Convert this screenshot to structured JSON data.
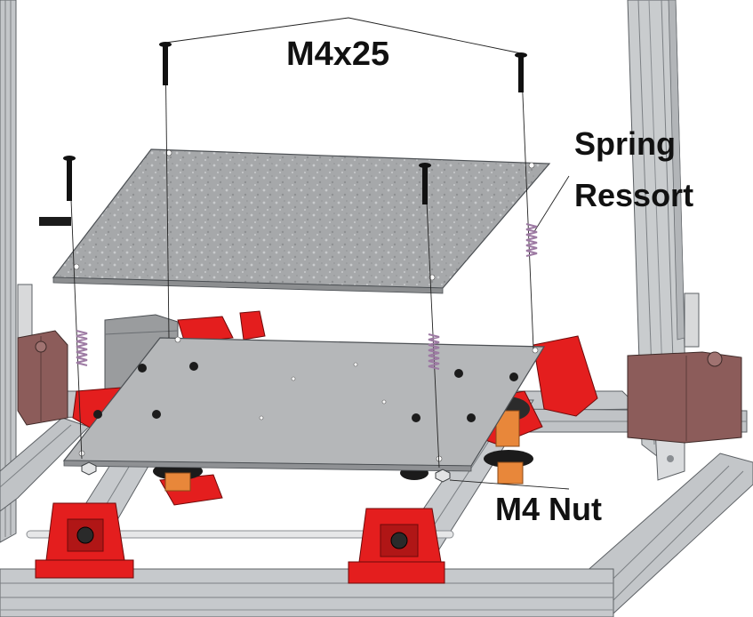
{
  "labels": {
    "screw": "M4x25",
    "spring_en": "Spring",
    "spring_fr": "Ressort",
    "nut": "M4 Nut"
  },
  "colors": {
    "frame": "#b8bcc0",
    "frame_dark": "#6f7377",
    "top_plate": "#a9abad",
    "carriage_plate": "#b5b7b9",
    "red_parts": "#e41e1e",
    "spring": "#b08ab4",
    "screw": "#111111",
    "motor_brown": "#8c5c5a",
    "wheel_orange": "#e8873a"
  }
}
